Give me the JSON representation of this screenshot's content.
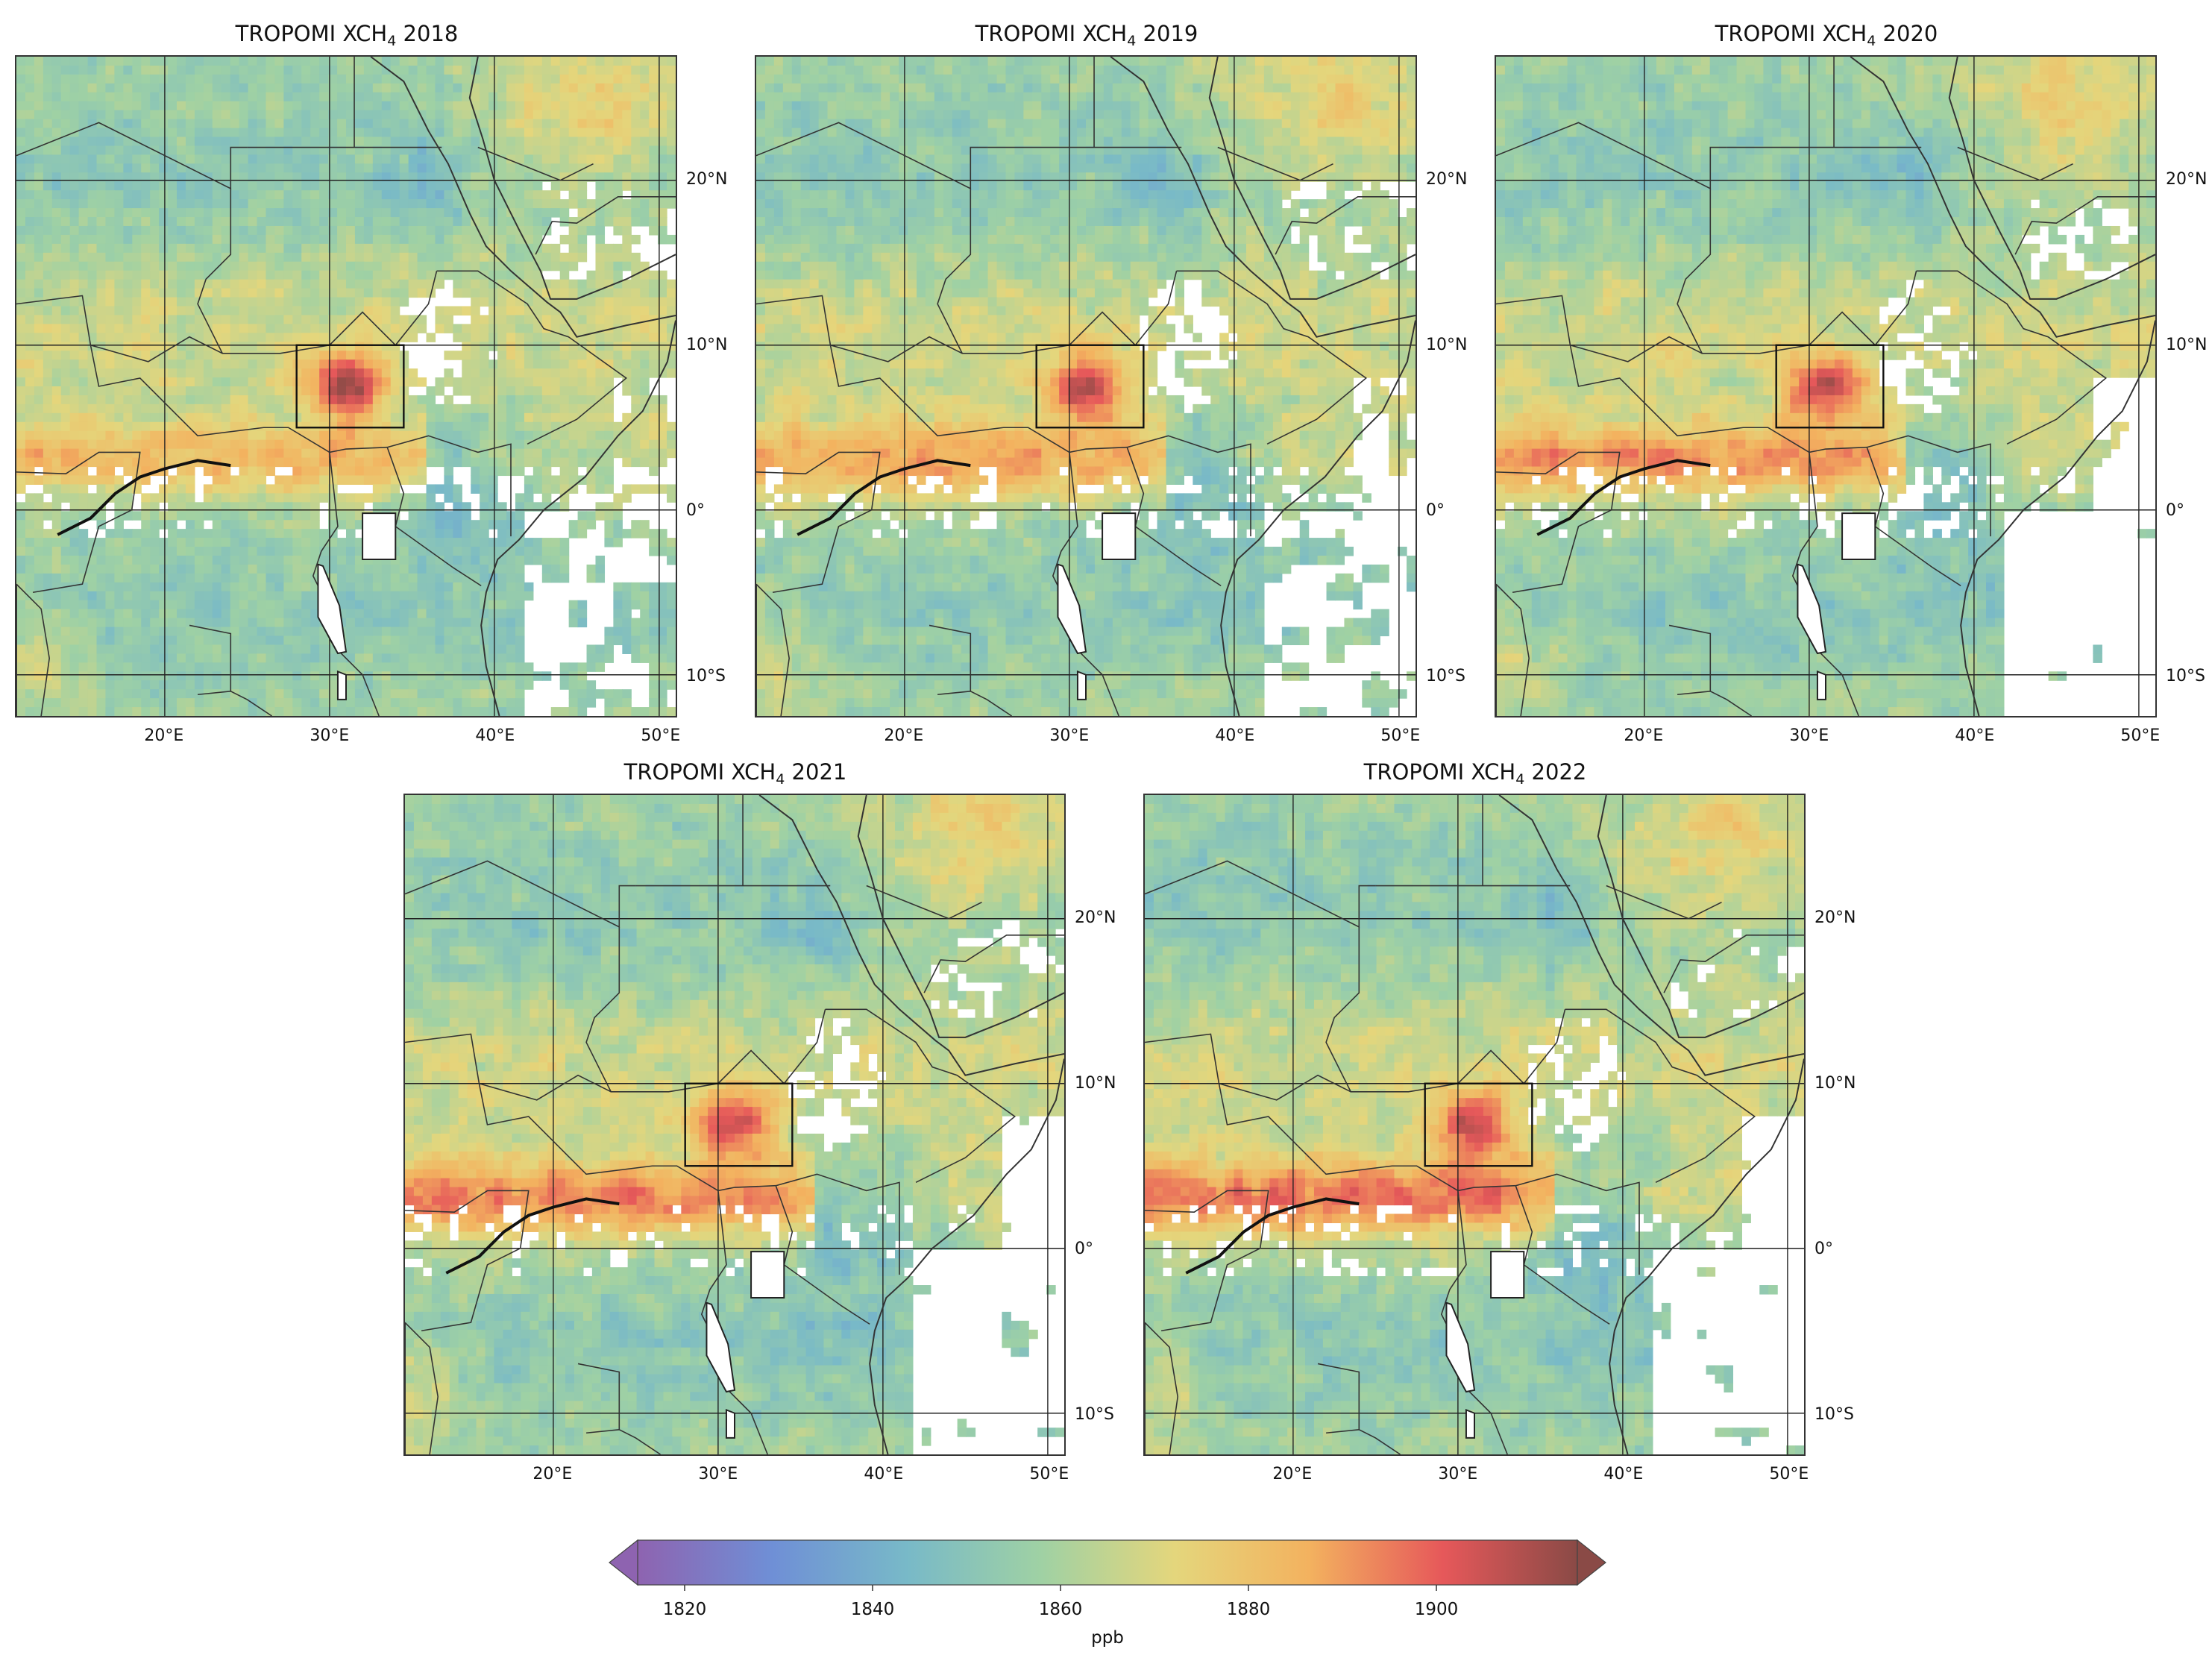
{
  "figure": {
    "panels": [
      {
        "title_prefix": "TROPOMI XCH",
        "title_sub": "4",
        "title_year": "2018",
        "variant": 0
      },
      {
        "title_prefix": "TROPOMI XCH",
        "title_sub": "4",
        "title_year": "2019",
        "variant": 1
      },
      {
        "title_prefix": "TROPOMI XCH",
        "title_sub": "4",
        "title_year": "2020",
        "variant": 2
      },
      {
        "title_prefix": "TROPOMI XCH",
        "title_sub": "4",
        "title_year": "2021",
        "variant": 3
      },
      {
        "title_prefix": "TROPOMI XCH",
        "title_sub": "4",
        "title_year": "2022",
        "variant": 4
      }
    ],
    "lat_ticks": [
      {
        "label": "20°N",
        "value": 20
      },
      {
        "label": "10°N",
        "value": 10
      },
      {
        "label": "0°",
        "value": 0
      },
      {
        "label": "10°S",
        "value": -10
      }
    ],
    "lon_ticks": [
      {
        "label": "20°E",
        "value": 20
      },
      {
        "label": "30°E",
        "value": 30
      },
      {
        "label": "40°E",
        "value": 40
      },
      {
        "label": "50°E",
        "value": 50
      }
    ],
    "extent": {
      "lon_min": 11,
      "lon_max": 51,
      "lat_min": -12.5,
      "lat_max": 27.5
    },
    "highlight_box": {
      "lon_min": 28,
      "lon_max": 34.5,
      "lat_min": 5,
      "lat_max": 10
    },
    "colorbar": {
      "ticks": [
        "1820",
        "1840",
        "1860",
        "1880",
        "1900"
      ],
      "tick_values": [
        1820,
        1840,
        1860,
        1880,
        1900
      ],
      "min": 1815,
      "max": 1915,
      "extend": "both",
      "label": "ppb",
      "colors": [
        "#8e63b0",
        "#6f8fd6",
        "#78b9c8",
        "#9fd1a4",
        "#e4d67c",
        "#f3b25f",
        "#e6585a",
        "#8a4a46"
      ]
    }
  }
}
